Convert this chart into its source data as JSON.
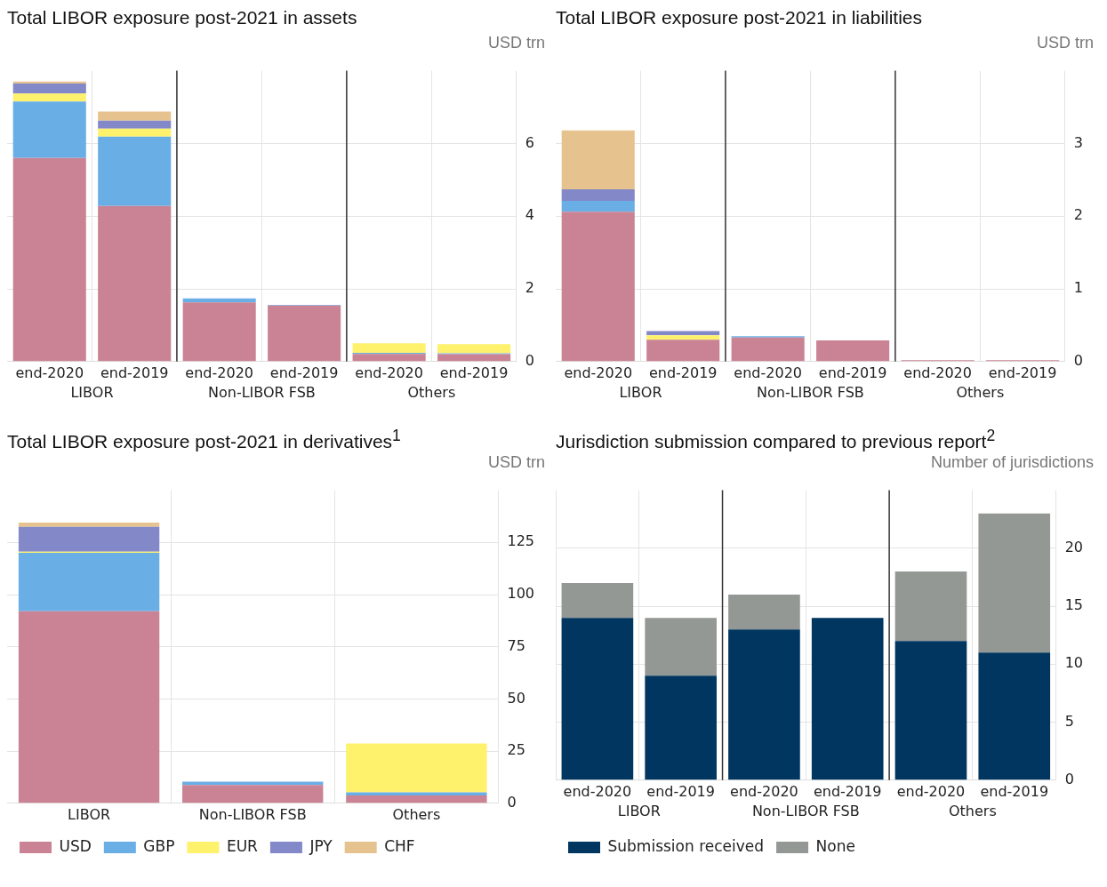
{
  "chart_data": [
    {
      "type": "bar",
      "title": "Total LIBOR exposure post-2021 in assets",
      "ylabel": "USD trn",
      "categories": [
        "end-2020",
        "end-2019",
        "end-2020",
        "end-2019",
        "end-2020",
        "end-2019"
      ],
      "annotations": [
        "LIBOR",
        "Non-LIBOR FSB",
        "Others"
      ],
      "stacked": true,
      "ylim": [
        0,
        8
      ],
      "yticks": [
        0,
        2,
        4,
        6
      ],
      "grid": true,
      "legend": false,
      "series": [
        {
          "color": "#c98394",
          "values": [
            5.6,
            4.28,
            1.63,
            1.54,
            0.21,
            0.2
          ]
        },
        {
          "color": "#6aaee6",
          "values": [
            1.55,
            1.91,
            0.11,
            0.02,
            0.03,
            0.03
          ]
        },
        {
          "color": "#fef16c",
          "values": [
            0.22,
            0.22,
            0,
            0,
            0.26,
            0.25
          ]
        },
        {
          "color": "#8288c8",
          "values": [
            0.28,
            0.22,
            0,
            0,
            0,
            0
          ]
        },
        {
          "color": "#e6c38e",
          "values": [
            0.05,
            0.25,
            0,
            0,
            0,
            0
          ]
        }
      ]
    },
    {
      "type": "bar",
      "title": "Total LIBOR exposure post-2021 in liabilities",
      "ylabel": "USD trn",
      "categories": [
        "end-2020",
        "end-2019",
        "end-2020",
        "end-2019",
        "end-2020",
        "end-2019"
      ],
      "annotations": [
        "LIBOR",
        "Non-LIBOR FSB",
        "Others"
      ],
      "stacked": true,
      "ylim": [
        0,
        4
      ],
      "yticks": [
        0,
        1,
        2,
        3
      ],
      "grid": true,
      "legend": false,
      "series": [
        {
          "color": "#c98394",
          "values": [
            2.06,
            0.3,
            0.33,
            0.29,
            0.02,
            0.02
          ]
        },
        {
          "color": "#6aaee6",
          "values": [
            0.15,
            0,
            0.02,
            0,
            0,
            0
          ]
        },
        {
          "color": "#fef16c",
          "values": [
            0,
            0.06,
            0,
            0,
            0,
            0
          ]
        },
        {
          "color": "#8288c8",
          "values": [
            0.16,
            0.06,
            0,
            0,
            0,
            0
          ]
        },
        {
          "color": "#e6c38e",
          "values": [
            0.81,
            0,
            0,
            0,
            0,
            0
          ]
        }
      ]
    },
    {
      "type": "bar",
      "title": "Total LIBOR exposure post-2021 in derivatives$^{1}$",
      "ylabel": "USD trn",
      "categories": [
        "LIBOR",
        "Non-LIBOR FSB",
        "Others"
      ],
      "stacked": true,
      "ylim": [
        0,
        150
      ],
      "yticks": [
        0,
        25,
        50,
        75,
        100,
        125
      ],
      "grid": true,
      "legend": "bottom left",
      "series": [
        {
          "name": "USD",
          "color": "#c98394",
          "values": [
            92,
            8.8,
            3.7
          ]
        },
        {
          "name": "GBP",
          "color": "#6aaee6",
          "values": [
            28,
            1.5,
            1.5
          ]
        },
        {
          "name": "EUR",
          "color": "#fef16c",
          "values": [
            0.5,
            0,
            23.5
          ]
        },
        {
          "name": "JPY",
          "color": "#8288c8",
          "values": [
            12,
            0,
            0
          ]
        },
        {
          "name": "CHF",
          "color": "#e6c38e",
          "values": [
            2,
            0,
            0
          ]
        }
      ]
    },
    {
      "type": "bar",
      "title": "Jurisdiction submission compared to previous report$^{2}$",
      "ylabel": "Number of jurisdictions",
      "categories": [
        "end-2020",
        "end-2019",
        "end-2020",
        "end-2019",
        "end-2020",
        "end-2019"
      ],
      "annotations": [
        "LIBOR",
        "Non-LIBOR FSB",
        "Others"
      ],
      "stacked": true,
      "ylim": [
        0,
        25
      ],
      "yticks": [
        0,
        5,
        10,
        15,
        20
      ],
      "grid": true,
      "legend": "bottom left",
      "series": [
        {
          "name": "Submission received",
          "color": "#003660",
          "values": [
            14,
            9,
            13,
            14,
            12,
            11
          ]
        },
        {
          "name": "None",
          "color": "#949894",
          "values": [
            3,
            5,
            3,
            0,
            6,
            12
          ]
        }
      ]
    }
  ]
}
